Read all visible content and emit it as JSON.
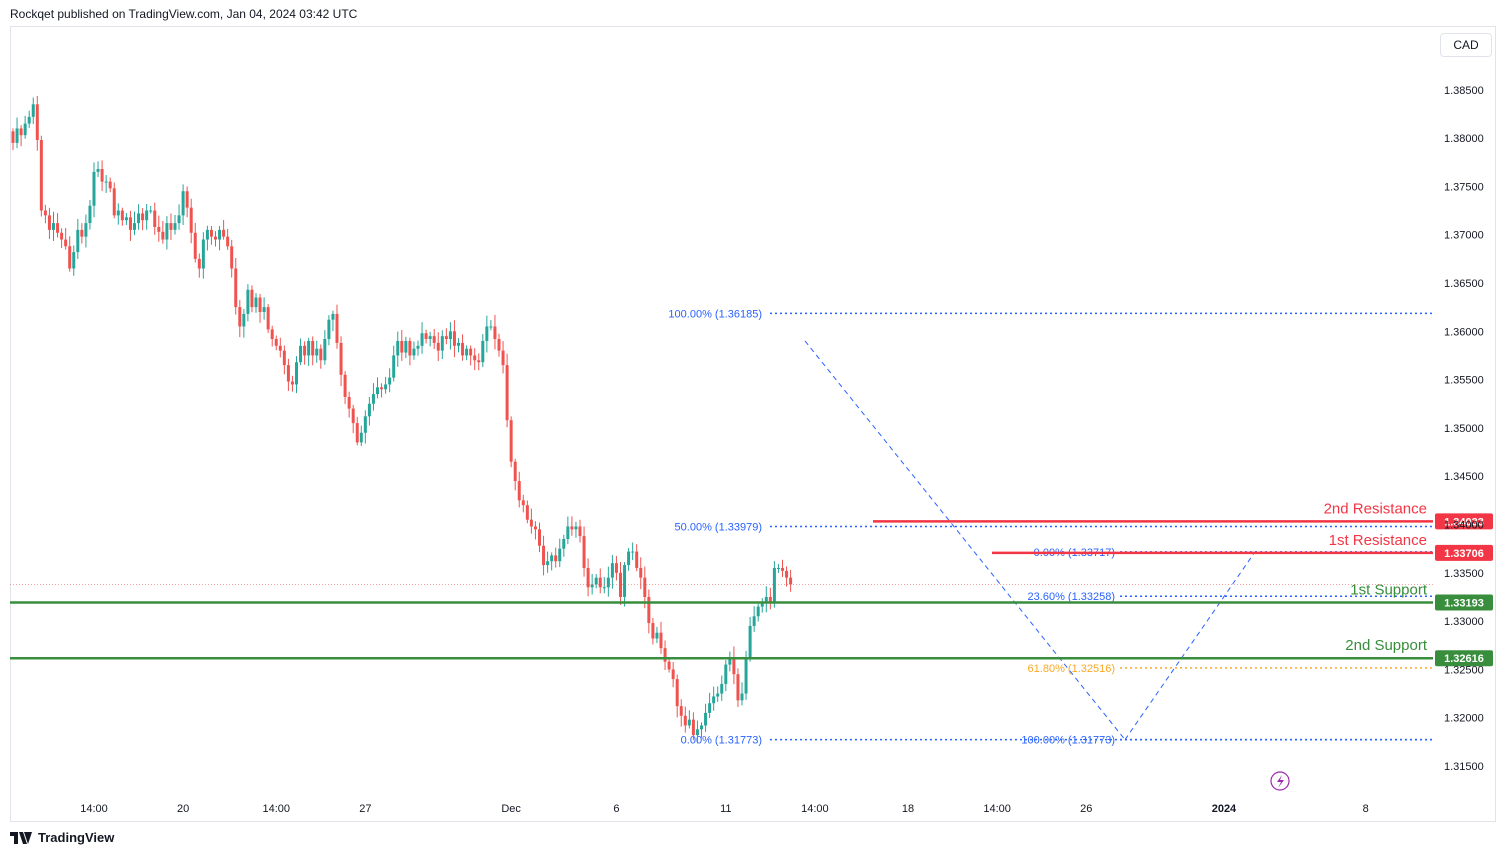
{
  "header": {
    "published": "Rockqet published on TradingView.com, Jan 04, 2024 03:42 UTC"
  },
  "toolbar": {
    "currency": "CAD"
  },
  "footer": {
    "brand": "TradingView"
  },
  "colors": {
    "up": "#26a69a",
    "down": "#ef5350",
    "resistance": "#f23645",
    "support": "#388e3c",
    "fib": "#2962ff",
    "fib_gold": "#f9a825"
  },
  "chart_data": {
    "type": "candlestick",
    "instrument_currency": "CAD",
    "ylim": [
      1.312,
      1.3915
    ],
    "y_ticks": [
      1.385,
      1.38,
      1.375,
      1.37,
      1.365,
      1.36,
      1.355,
      1.35,
      1.345,
      1.34,
      1.335,
      1.33,
      1.325,
      1.32,
      1.315
    ],
    "y_tick_labels": [
      "1.38500",
      "1.38000",
      "1.37500",
      "1.37000",
      "1.36500",
      "1.36000",
      "1.35500",
      "1.35000",
      "1.34500",
      "1.34000",
      "1.33500",
      "1.33000",
      "1.32500",
      "1.32000",
      "1.31500"
    ],
    "x_ticks": [
      {
        "label": "14:00",
        "i": 20
      },
      {
        "label": "20",
        "i": 42
      },
      {
        "label": "14:00",
        "i": 65
      },
      {
        "label": "27",
        "i": 87
      },
      {
        "label": "Dec",
        "i": 123
      },
      {
        "label": "6",
        "i": 149
      },
      {
        "label": "11",
        "i": 176
      },
      {
        "label": "14:00",
        "i": 198
      },
      {
        "label": "18",
        "i": 221
      },
      {
        "label": "14:00",
        "i": 243
      },
      {
        "label": "26",
        "i": 265
      },
      {
        "label": "2024",
        "i": 299
      },
      {
        "label": "8",
        "i": 334
      }
    ],
    "candles_start_x": 13,
    "candle_step": 4.05,
    "series_close": [
      1.3795,
      1.381,
      1.3803,
      1.3815,
      1.3822,
      1.3835,
      1.3798,
      1.3725,
      1.372,
      1.3705,
      1.3712,
      1.3702,
      1.3695,
      1.3688,
      1.3665,
      1.3682,
      1.3705,
      1.3698,
      1.3712,
      1.373,
      1.3765,
      1.3768,
      1.3755,
      1.3755,
      1.3748,
      1.372,
      1.3725,
      1.3715,
      1.3718,
      1.3705,
      1.3712,
      1.3722,
      1.3715,
      1.3725,
      1.3725,
      1.3708,
      1.3703,
      1.3695,
      1.3712,
      1.3705,
      1.3712,
      1.372,
      1.3745,
      1.3728,
      1.3702,
      1.3675,
      1.3665,
      1.3695,
      1.3705,
      1.3698,
      1.3695,
      1.3705,
      1.3698,
      1.3688,
      1.3665,
      1.3625,
      1.3605,
      1.3618,
      1.3643,
      1.3625,
      1.3635,
      1.362,
      1.3625,
      1.3602,
      1.3592,
      1.3585,
      1.358,
      1.3565,
      1.3548,
      1.3545,
      1.3568,
      1.3585,
      1.3575,
      1.359,
      1.3575,
      1.3582,
      1.357,
      1.3592,
      1.3612,
      1.3618,
      1.3588,
      1.3555,
      1.3532,
      1.352,
      1.3505,
      1.3485,
      1.3495,
      1.3512,
      1.3525,
      1.3535,
      1.3542,
      1.354,
      1.3545,
      1.3552,
      1.3575,
      1.359,
      1.3578,
      1.359,
      1.3575,
      1.3582,
      1.3585,
      1.3598,
      1.3592,
      1.3595,
      1.3588,
      1.358,
      1.3595,
      1.3592,
      1.36,
      1.3585,
      1.3588,
      1.3575,
      1.3582,
      1.3575,
      1.357,
      1.3568,
      1.359,
      1.3605,
      1.3605,
      1.3592,
      1.358,
      1.3565,
      1.3508,
      1.3465,
      1.3445,
      1.3425,
      1.342,
      1.3405,
      1.3398,
      1.3395,
      1.3378,
      1.3358,
      1.3362,
      1.3368,
      1.3362,
      1.3375,
      1.3385,
      1.3398,
      1.3395,
      1.3398,
      1.3388,
      1.3355,
      1.3335,
      1.3338,
      1.3345,
      1.3335,
      1.3335,
      1.3345,
      1.336,
      1.335,
      1.3325,
      1.3358,
      1.3372,
      1.3372,
      1.3355,
      1.3345,
      1.3325,
      1.3298,
      1.3282,
      1.3288,
      1.3272,
      1.3258,
      1.325,
      1.324,
      1.3212,
      1.3202,
      1.3192,
      1.3198,
      1.3182,
      1.3188,
      1.3192,
      1.3205,
      1.3215,
      1.3222,
      1.3225,
      1.3235,
      1.3255,
      1.3262,
      1.3245,
      1.3218,
      1.3225,
      1.3262,
      1.3295,
      1.3305,
      1.3315,
      1.332,
      1.3325,
      1.332,
      1.3355,
      1.3355,
      1.3352,
      1.3345,
      1.3338
    ]
  },
  "levels": [
    {
      "name": "2nd Resistance",
      "price": "1.34033",
      "value": 1.34033,
      "color": "#f23645",
      "start_x": 873
    },
    {
      "name": "1st Resistance",
      "price": "1.33706",
      "value": 1.33706,
      "color": "#f23645",
      "start_x": 992
    },
    {
      "name": "1st Support",
      "price": "1.33193",
      "value": 1.33193,
      "color": "#388e3c",
      "start_x": 10
    },
    {
      "name": "2nd Support",
      "price": "1.32616",
      "value": 1.32616,
      "color": "#388e3c",
      "start_x": 10
    }
  ],
  "fib_top": [
    {
      "label": "100.00% (1.36185)",
      "value": 1.36185
    },
    {
      "label": "50.00% (1.33979)",
      "value": 1.33979
    },
    {
      "label": "0.00% (1.31773)",
      "value": 1.31773
    }
  ],
  "fib_bottom": [
    {
      "label": "0.00% (1.33717)",
      "value": 1.33717,
      "color": "#2962ff"
    },
    {
      "label": "23.60% (1.33258)",
      "value": 1.33258,
      "color": "#2962ff"
    },
    {
      "label": "61.80% (1.32516)",
      "value": 1.32516,
      "color": "#f9a825"
    },
    {
      "label": "100.00% (1.31773)",
      "value": 1.31773,
      "color": "#2962ff"
    }
  ],
  "last_price": 1.3338
}
